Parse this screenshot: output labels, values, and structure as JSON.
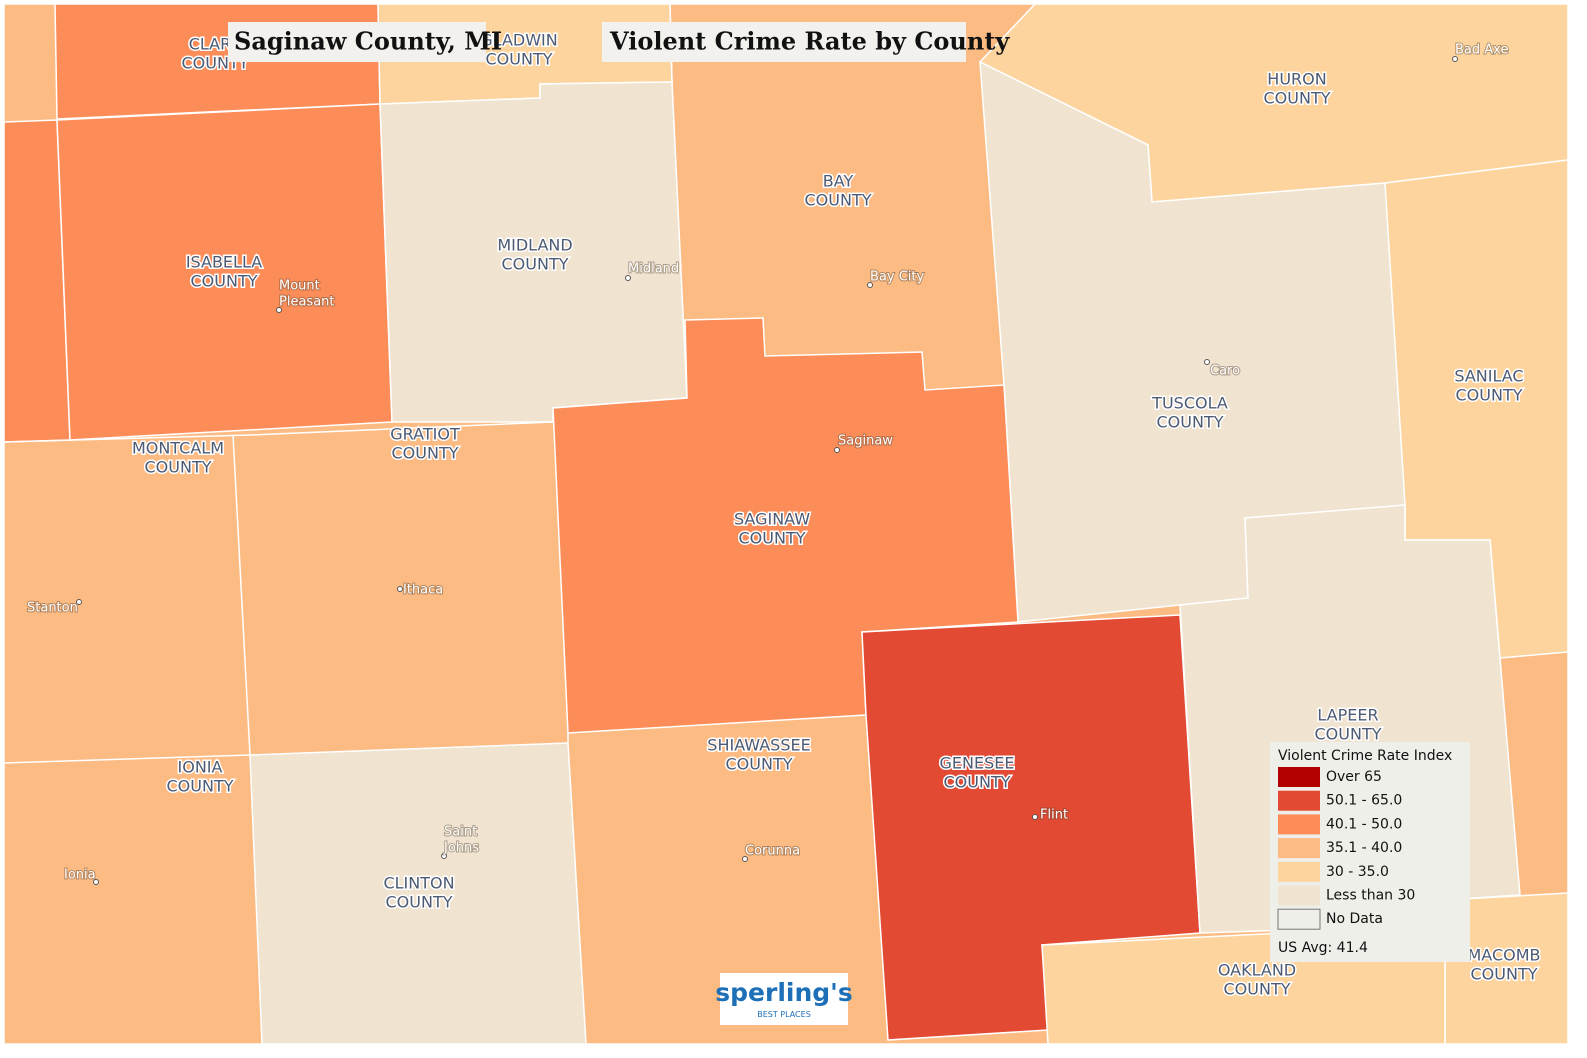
{
  "header": {
    "title": "Saginaw County, MI",
    "subtitle": "Violent Crime Rate by County"
  },
  "counties": [
    {
      "lines": [
        "CLARE",
        "COUNTY"
      ]
    },
    {
      "lines": [
        "GLADWIN",
        "COUNTY"
      ]
    },
    {
      "lines": [
        "HURON",
        "COUNTY"
      ]
    },
    {
      "lines": [
        "BAY",
        "COUNTY"
      ]
    },
    {
      "lines": [
        "ISABELLA",
        "COUNTY"
      ]
    },
    {
      "lines": [
        "MIDLAND",
        "COUNTY"
      ]
    },
    {
      "lines": [
        "SANILAC",
        "COUNTY"
      ]
    },
    {
      "lines": [
        "TUSCOLA",
        "COUNTY"
      ]
    },
    {
      "lines": [
        "MONTCALM",
        "COUNTY"
      ]
    },
    {
      "lines": [
        "GRATIOT",
        "COUNTY"
      ]
    },
    {
      "lines": [
        "SAGINAW",
        "COUNTY"
      ]
    },
    {
      "lines": [
        "LAPEER",
        "COUNTY"
      ]
    },
    {
      "lines": [
        "SHIAWASSEE",
        "COUNTY"
      ]
    },
    {
      "lines": [
        "GENESEE",
        "COUNTY"
      ]
    },
    {
      "lines": [
        "IONIA",
        "COUNTY"
      ]
    },
    {
      "lines": [
        "CLINTON",
        "COUNTY"
      ]
    },
    {
      "lines": [
        "OAKLAND",
        "COUNTY"
      ]
    },
    {
      "lines": [
        "MACOMB",
        "COUNTY"
      ]
    }
  ],
  "cities": [
    {
      "lines": [
        "Bad Axe"
      ]
    },
    {
      "lines": [
        "Midland"
      ]
    },
    {
      "lines": [
        "Bay City"
      ]
    },
    {
      "lines": [
        "Mount",
        "Pleasant"
      ]
    },
    {
      "lines": [
        "Caro"
      ]
    },
    {
      "lines": [
        "Saginaw"
      ]
    },
    {
      "lines": [
        "Ithaca"
      ]
    },
    {
      "lines": [
        "Stanton"
      ]
    },
    {
      "lines": [
        "Flint"
      ]
    },
    {
      "lines": [
        "Saint",
        "Johns"
      ]
    },
    {
      "lines": [
        "Corunna"
      ]
    },
    {
      "lines": [
        "Ionia"
      ]
    }
  ],
  "legend": {
    "title": "Violent Crime Rate Index",
    "items": [
      {
        "label": "Over 65",
        "color": "#b30000"
      },
      {
        "label": "50.1 - 65.0",
        "color": "#e34a33"
      },
      {
        "label": "40.1 - 50.0",
        "color": "#fc8d59"
      },
      {
        "label": "35.1 - 40.0",
        "color": "#fdbb84"
      },
      {
        "label": "30 - 35.0",
        "color": "#fdd49e"
      },
      {
        "label": "Less than 30",
        "color": "#f0e4d0"
      },
      {
        "label": "No Data",
        "color": "#efefea"
      }
    ],
    "note": "US Avg: 41.4"
  },
  "logo": {
    "name": "sperling's",
    "tagline": "BEST PLACES"
  }
}
